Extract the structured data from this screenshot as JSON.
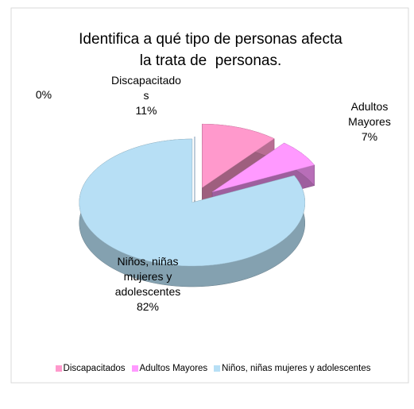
{
  "chart_data": {
    "type": "pie",
    "title": "Identifica a qué tipo de personas afecta la trata de  personas.",
    "categories": [
      "Discapacitados",
      "Adultos Mayores",
      "Niños, niñas mujeres y adolescentes",
      null
    ],
    "values": [
      11,
      7,
      82,
      0
    ],
    "value_labels": [
      "11%",
      "7%",
      "82%",
      "0%"
    ],
    "colors": [
      "#ff99cc",
      "#ff99ff",
      "#b7dff5",
      "#9fc5e8"
    ],
    "legend": "bottom"
  }
}
